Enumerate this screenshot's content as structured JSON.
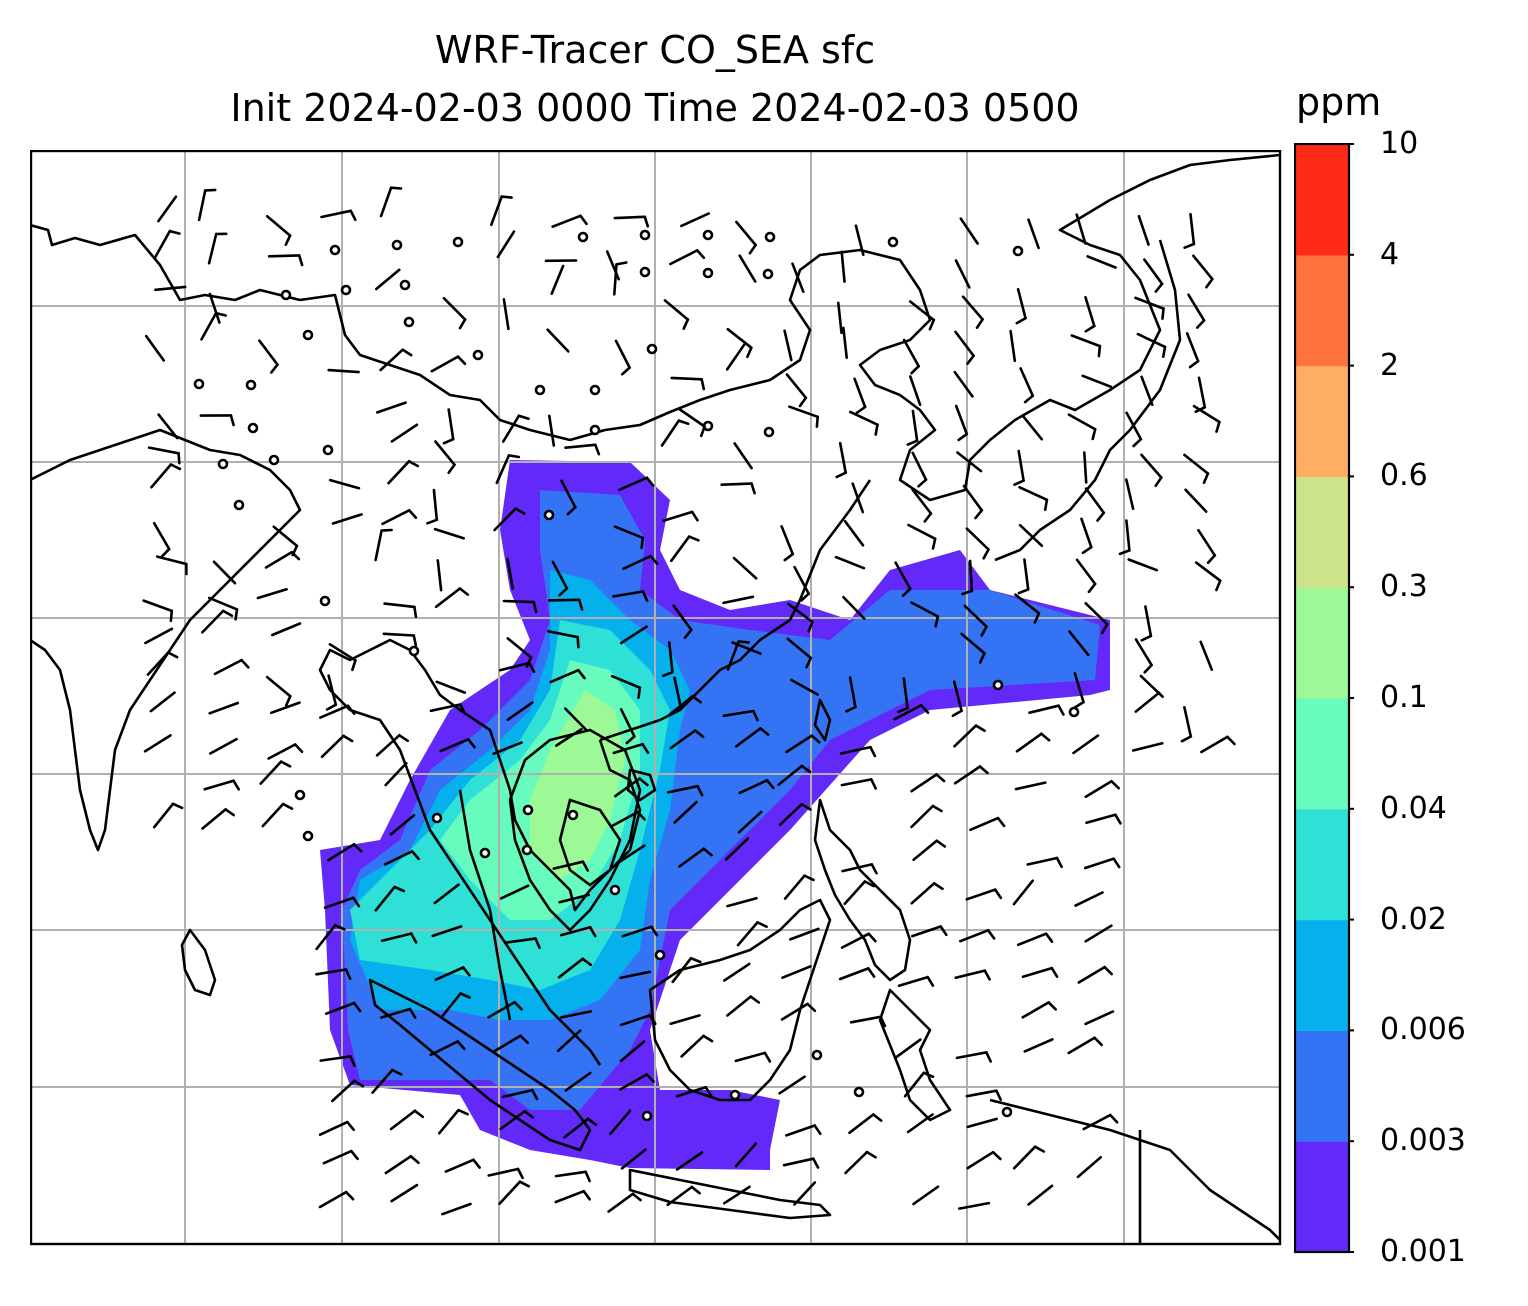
{
  "title": {
    "line1": "WRF-Tracer CO_SEA sfc",
    "line2": "Init 2024-02-03 0000 Time 2024-02-03 0500"
  },
  "colorbar": {
    "unit": "ppm",
    "levels": [
      "0.001",
      "0.003",
      "0.006",
      "0.02",
      "0.04",
      "0.1",
      "0.3",
      "0.6",
      "2",
      "4",
      "10"
    ],
    "colors": [
      "#6329f9",
      "#3474f4",
      "#05b0ec",
      "#2ee0d6",
      "#67fbbd",
      "#9cf996",
      "#cde38a",
      "#ffae63",
      "#ff713f",
      "#ff2b16"
    ]
  },
  "map": {
    "colors": {
      "land_line": "#000000",
      "grid": "#b0b0b0",
      "barb": "#000000"
    },
    "icons": [
      "coastline-outline",
      "wind-barb",
      "calm-wind-circle",
      "lat-lon-gridline"
    ]
  }
}
